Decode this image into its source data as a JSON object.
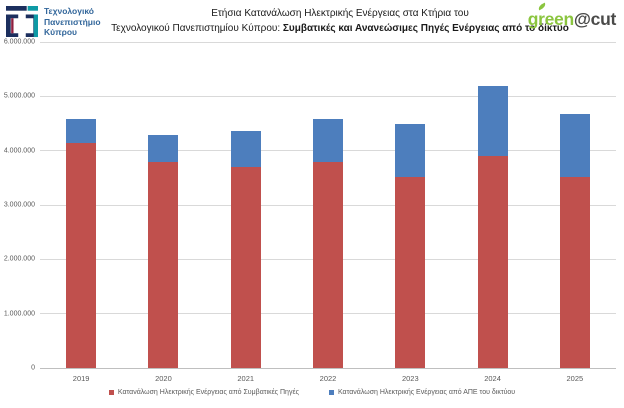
{
  "header": {
    "logo": {
      "line1": "Τεχνολογικό",
      "line2": "Πανεπιστήμιο",
      "line3": "Κύπρου",
      "navy": "#1c2f5e",
      "teal": "#0e9aa5",
      "crimson": "#8f1f3f"
    },
    "brand": {
      "green_part": "green",
      "dark_part": "@cut",
      "green_color": "#8bc53f",
      "dark_color": "#4a4a49"
    }
  },
  "title": {
    "line1": "Ετήσια Κατανάλωση Ηλεκτρικής Ενέργειας στα Κτήρια του",
    "line2_regular": "Τεχνολογικού Πανεπιστημίου Κύπρου: ",
    "line2_bold": "Συμβατικές και Ανανεώσιμες Πηγές Ενέργειας από το δίκτυο"
  },
  "chart_data": {
    "type": "bar",
    "stacked": true,
    "title": "Ετήσια Κατανάλωση Ηλεκτρικής Ενέργειας στα Κτήρια του Τεχνολογικού Πανεπιστημίου Κύπρου: Συμβατικές και Ανανεώσιμες Πηγές Ενέργειας από το δίκτυο",
    "categories": [
      "2019",
      "2020",
      "2021",
      "2022",
      "2023",
      "2024",
      "2025"
    ],
    "series": [
      {
        "name": "Κατανάλωση Ηλεκτρικής Ενέργειας από Συμβατικές Πηγές",
        "color": "#c0504d",
        "values": [
          4150000,
          3790000,
          3700000,
          3790000,
          3520000,
          3900000,
          3520000
        ]
      },
      {
        "name": "Κατανάλωση Ηλεκτρικής Ενέργειας από ΑΠΕ του δικτύου",
        "color": "#4d7ebd",
        "values": [
          440000,
          500000,
          660000,
          800000,
          980000,
          1290000,
          1150000
        ]
      }
    ],
    "xlabel": "",
    "ylabel": "",
    "ylim": [
      0,
      6000000
    ],
    "ytick_step": 1000000,
    "ytick_labels": [
      "0",
      "1.000.000",
      "2.000.000",
      "3.000.000",
      "4.000.000",
      "5.000.000",
      "6.000.000"
    ],
    "grid": true,
    "legend_position": "bottom",
    "gridline_color": "#d9d9d9",
    "axis_color": "#bfbfbf"
  }
}
